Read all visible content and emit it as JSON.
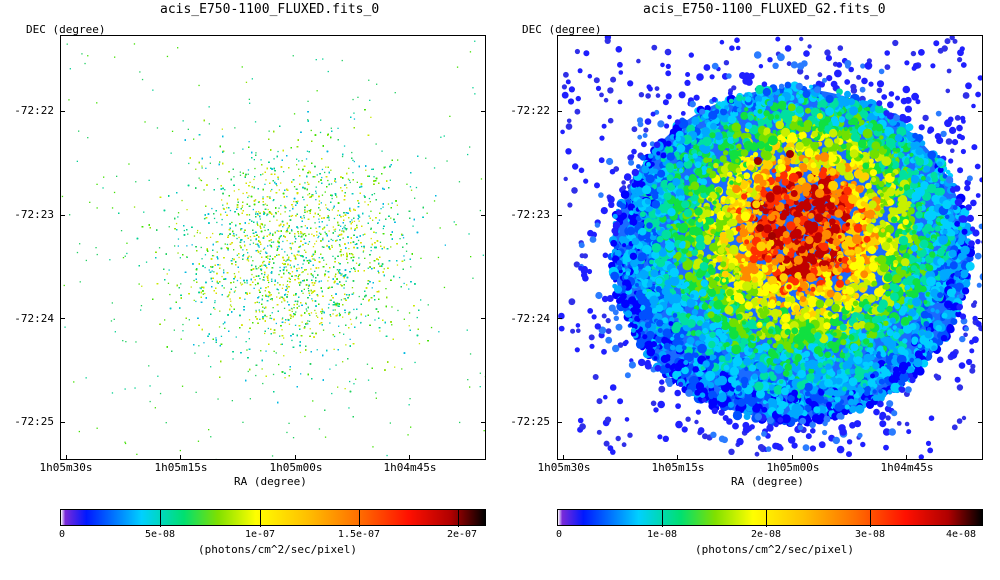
{
  "panels": [
    {
      "title": "acis_E750-1100_FLUXED.fits_0",
      "xlabel": "RA (degree)",
      "ylabel": "DEC (degree)",
      "yticks": [
        "-72:22",
        "-72:23",
        "-72:24",
        "-72:25"
      ],
      "xticks": [
        "1h05m30s",
        "1h05m15s",
        "1h05m00s",
        "1h04m45s"
      ],
      "colorbar": {
        "ticks": [
          "0",
          "5e-08",
          "1e-07",
          "1.5e-07",
          "2e-07"
        ],
        "unit": "(photons/cm^2/sec/pixel)"
      }
    },
    {
      "title": "acis_E750-1100_FLUXED_G2.fits_0",
      "xlabel": "RA (degree)",
      "ylabel": "DEC (degree)",
      "yticks": [
        "-72:22",
        "-72:23",
        "-72:24",
        "-72:25"
      ],
      "xticks": [
        "1h05m30s",
        "1h05m15s",
        "1h05m00s",
        "1h04m45s"
      ],
      "colorbar": {
        "ticks": [
          "0",
          "1e-08",
          "2e-08",
          "3e-08",
          "4e-08"
        ],
        "unit": "(photons/cm^2/sec/pixel)"
      }
    }
  ],
  "colors": {
    "cmap": [
      "#ffffff",
      "#6b00d6",
      "#0000ff",
      "#00c8ff",
      "#00e070",
      "#9be600",
      "#ffff00",
      "#ffb000",
      "#ff5a00",
      "#d00000",
      "#000000"
    ]
  }
}
